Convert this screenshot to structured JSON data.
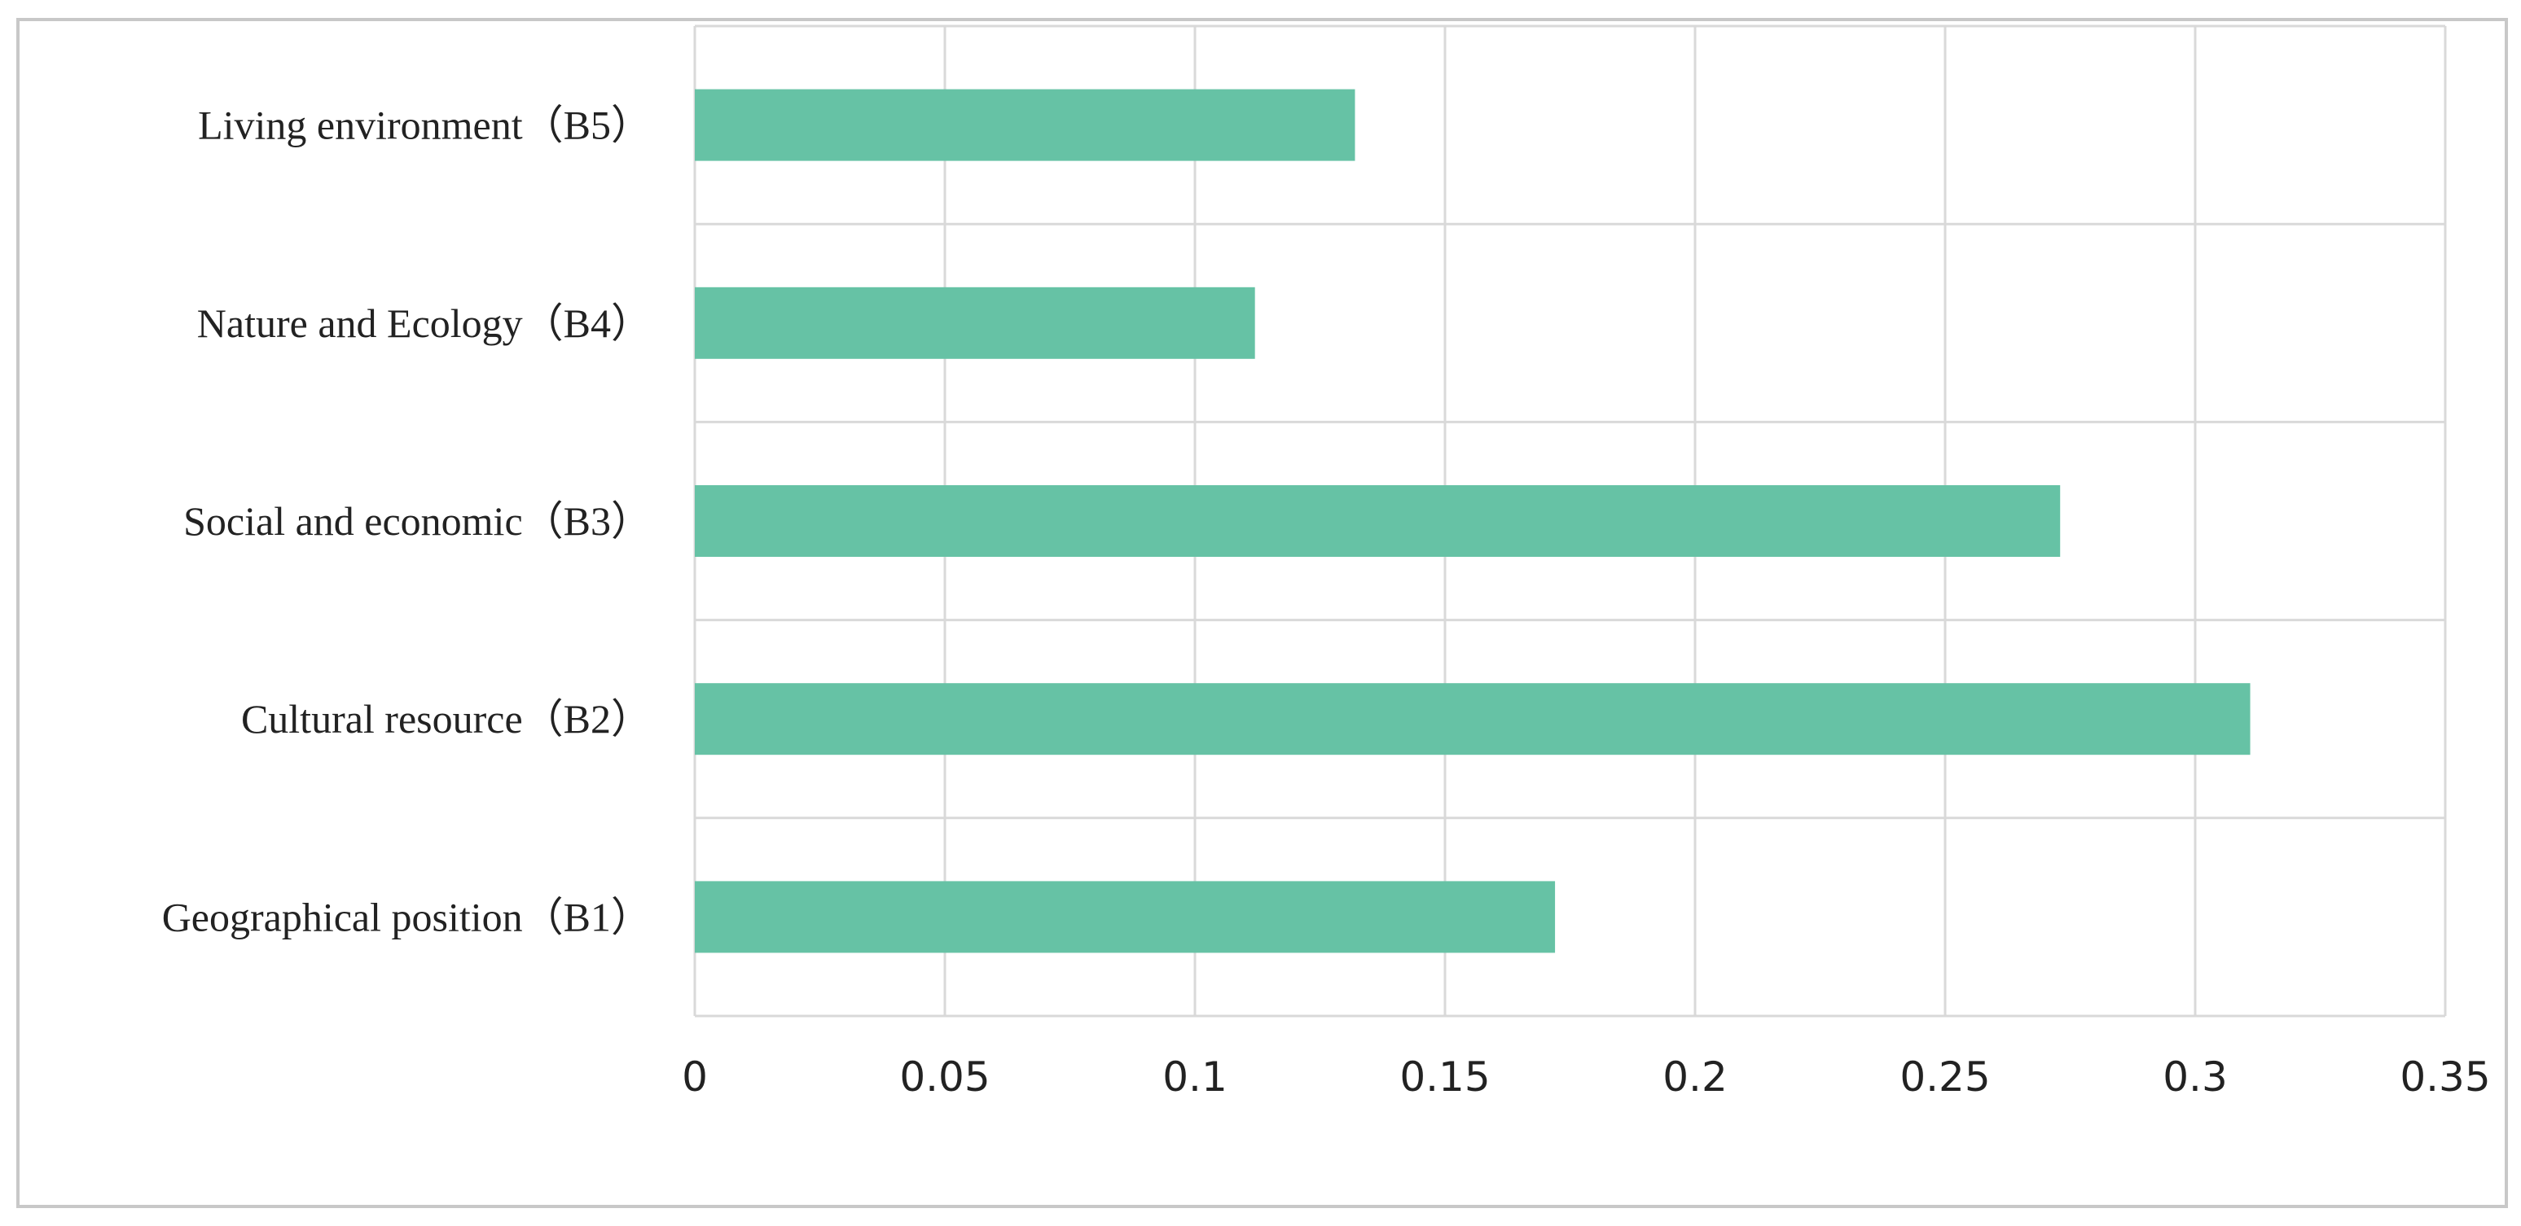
{
  "chart_data": {
    "type": "bar",
    "orientation": "horizontal",
    "title": "",
    "xlabel": "",
    "ylabel": "",
    "categories": [
      "Geographical position（B1）",
      "Cultural resource（B2）",
      "Social and economic（B3）",
      "Nature and Ecology（B4）",
      "Living environment（B5）"
    ],
    "values": [
      0.172,
      0.311,
      0.273,
      0.112,
      0.132
    ],
    "xlim": [
      0,
      0.35
    ],
    "xticks": [
      0,
      0.05,
      0.1,
      0.15,
      0.2,
      0.25,
      0.3,
      0.35
    ],
    "xtick_labels": [
      "0",
      "0.05",
      "0.1",
      "0.15",
      "0.2",
      "0.25",
      "0.3",
      "0.35"
    ],
    "grid": true,
    "legend": "none",
    "bar_color": "#66c2a5"
  }
}
